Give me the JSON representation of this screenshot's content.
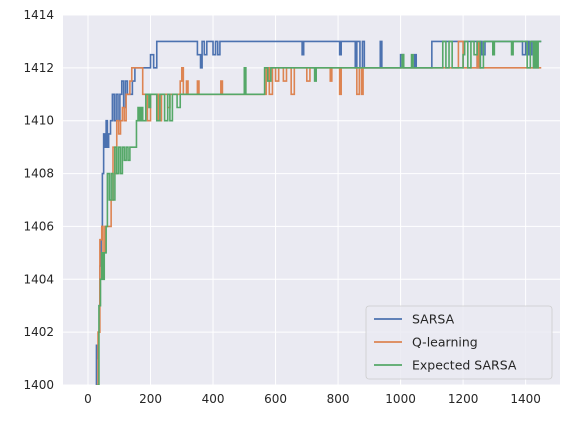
{
  "chart_data": {
    "type": "line",
    "title": "",
    "xlabel": "",
    "ylabel": "",
    "xlim": [
      -80,
      1510
    ],
    "ylim": [
      1400,
      1414
    ],
    "x_ticks": [
      0,
      200,
      400,
      600,
      800,
      1000,
      1200,
      1400
    ],
    "y_ticks": [
      1400,
      1402,
      1404,
      1406,
      1408,
      1410,
      1412,
      1414
    ],
    "grid": true,
    "legend_position": "lower-right",
    "series": [
      {
        "name": "SARSA",
        "color": "#4c72b0",
        "points": [
          [
            25,
            1400
          ],
          [
            27,
            1401.5
          ],
          [
            30,
            1401
          ],
          [
            33,
            1402
          ],
          [
            36,
            1403
          ],
          [
            38,
            1404.5
          ],
          [
            42,
            1405.5
          ],
          [
            46,
            1408
          ],
          [
            50,
            1409.5
          ],
          [
            55,
            1409
          ],
          [
            58,
            1410
          ],
          [
            62,
            1409
          ],
          [
            66,
            1409.5
          ],
          [
            72,
            1410
          ],
          [
            78,
            1411
          ],
          [
            84,
            1410
          ],
          [
            90,
            1411
          ],
          [
            96,
            1410
          ],
          [
            102,
            1411
          ],
          [
            108,
            1411.5
          ],
          [
            114,
            1410.5
          ],
          [
            120,
            1411.5
          ],
          [
            126,
            1411
          ],
          [
            134,
            1411
          ],
          [
            142,
            1411.5
          ],
          [
            150,
            1412
          ],
          [
            175,
            1412
          ],
          [
            190,
            1412
          ],
          [
            200,
            1412.5
          ],
          [
            210,
            1412
          ],
          [
            220,
            1413
          ],
          [
            345,
            1413
          ],
          [
            350,
            1412.5
          ],
          [
            360,
            1412
          ],
          [
            365,
            1413
          ],
          [
            372,
            1412.5
          ],
          [
            380,
            1413
          ],
          [
            395,
            1413
          ],
          [
            400,
            1412.5
          ],
          [
            408,
            1413
          ],
          [
            415,
            1412.5
          ],
          [
            422,
            1413
          ],
          [
            680,
            1413
          ],
          [
            685,
            1412.5
          ],
          [
            690,
            1413
          ],
          [
            800,
            1413
          ],
          [
            805,
            1412.5
          ],
          [
            810,
            1413
          ],
          [
            850,
            1413
          ],
          [
            855,
            1412
          ],
          [
            860,
            1413
          ],
          [
            870,
            1412
          ],
          [
            878,
            1413
          ],
          [
            884,
            1412
          ],
          [
            892,
            1412
          ],
          [
            930,
            1412
          ],
          [
            935,
            1413
          ],
          [
            940,
            1412
          ],
          [
            995,
            1412
          ],
          [
            1000,
            1412.5
          ],
          [
            1010,
            1412
          ],
          [
            1040,
            1412
          ],
          [
            1045,
            1412.5
          ],
          [
            1050,
            1412
          ],
          [
            1090,
            1412
          ],
          [
            1100,
            1413
          ],
          [
            1240,
            1413
          ],
          [
            1245,
            1412
          ],
          [
            1255,
            1413
          ],
          [
            1260,
            1412.5
          ],
          [
            1270,
            1413
          ],
          [
            1380,
            1413
          ],
          [
            1390,
            1412.5
          ],
          [
            1400,
            1413
          ],
          [
            1410,
            1412.5
          ],
          [
            1420,
            1413
          ],
          [
            1450,
            1413
          ]
        ]
      },
      {
        "name": "Q-learning",
        "color": "#dd8452",
        "points": [
          [
            28,
            1400
          ],
          [
            32,
            1402
          ],
          [
            38,
            1405.5
          ],
          [
            44,
            1406
          ],
          [
            48,
            1405
          ],
          [
            54,
            1406
          ],
          [
            68,
            1406
          ],
          [
            74,
            1407
          ],
          [
            80,
            1409
          ],
          [
            86,
            1408
          ],
          [
            92,
            1410
          ],
          [
            98,
            1409.5
          ],
          [
            104,
            1410
          ],
          [
            110,
            1410.5
          ],
          [
            116,
            1410
          ],
          [
            122,
            1411
          ],
          [
            128,
            1411
          ],
          [
            134,
            1411.5
          ],
          [
            140,
            1412
          ],
          [
            170,
            1412
          ],
          [
            175,
            1411
          ],
          [
            185,
            1411
          ],
          [
            190,
            1410
          ],
          [
            200,
            1411
          ],
          [
            220,
            1411
          ],
          [
            225,
            1410
          ],
          [
            235,
            1411
          ],
          [
            250,
            1411
          ],
          [
            255,
            1410.5
          ],
          [
            262,
            1411
          ],
          [
            290,
            1411
          ],
          [
            295,
            1411.5
          ],
          [
            300,
            1412
          ],
          [
            305,
            1411
          ],
          [
            315,
            1411.5
          ],
          [
            320,
            1411
          ],
          [
            345,
            1411
          ],
          [
            350,
            1411.5
          ],
          [
            355,
            1411
          ],
          [
            420,
            1411
          ],
          [
            425,
            1411.5
          ],
          [
            430,
            1411
          ],
          [
            560,
            1411
          ],
          [
            570,
            1412
          ],
          [
            580,
            1411
          ],
          [
            590,
            1412
          ],
          [
            600,
            1411.5
          ],
          [
            610,
            1412
          ],
          [
            625,
            1411.5
          ],
          [
            635,
            1412
          ],
          [
            650,
            1411
          ],
          [
            660,
            1412
          ],
          [
            690,
            1412
          ],
          [
            700,
            1411.5
          ],
          [
            710,
            1412
          ],
          [
            770,
            1412
          ],
          [
            775,
            1411.5
          ],
          [
            780,
            1412
          ],
          [
            800,
            1412
          ],
          [
            805,
            1411
          ],
          [
            810,
            1412
          ],
          [
            855,
            1412
          ],
          [
            860,
            1411
          ],
          [
            868,
            1412
          ],
          [
            875,
            1411
          ],
          [
            880,
            1412
          ],
          [
            1180,
            1412
          ],
          [
            1185,
            1413
          ],
          [
            1200,
            1412
          ],
          [
            1240,
            1412
          ],
          [
            1245,
            1413
          ],
          [
            1250,
            1412
          ],
          [
            1450,
            1412
          ]
        ]
      },
      {
        "name": "Expected SARSA",
        "color": "#55a868",
        "points": [
          [
            30,
            1400
          ],
          [
            35,
            1403
          ],
          [
            40,
            1404
          ],
          [
            44,
            1405
          ],
          [
            48,
            1404
          ],
          [
            52,
            1405
          ],
          [
            58,
            1406
          ],
          [
            62,
            1408
          ],
          [
            68,
            1407
          ],
          [
            74,
            1408
          ],
          [
            80,
            1407
          ],
          [
            86,
            1409
          ],
          [
            92,
            1408
          ],
          [
            98,
            1409
          ],
          [
            104,
            1408
          ],
          [
            110,
            1409
          ],
          [
            116,
            1408.5
          ],
          [
            122,
            1409
          ],
          [
            128,
            1408.5
          ],
          [
            134,
            1409
          ],
          [
            150,
            1409
          ],
          [
            155,
            1410
          ],
          [
            160,
            1410.5
          ],
          [
            165,
            1410
          ],
          [
            170,
            1410.5
          ],
          [
            175,
            1410
          ],
          [
            185,
            1411
          ],
          [
            195,
            1410.5
          ],
          [
            200,
            1411
          ],
          [
            215,
            1411
          ],
          [
            220,
            1410
          ],
          [
            230,
            1411
          ],
          [
            245,
            1410
          ],
          [
            255,
            1411
          ],
          [
            262,
            1410
          ],
          [
            270,
            1411
          ],
          [
            285,
            1410.5
          ],
          [
            295,
            1411
          ],
          [
            495,
            1411
          ],
          [
            500,
            1412
          ],
          [
            505,
            1411
          ],
          [
            560,
            1411
          ],
          [
            565,
            1412
          ],
          [
            575,
            1411.5
          ],
          [
            585,
            1412
          ],
          [
            720,
            1412
          ],
          [
            725,
            1411.5
          ],
          [
            730,
            1412
          ],
          [
            1000,
            1412
          ],
          [
            1005,
            1412.5
          ],
          [
            1010,
            1412
          ],
          [
            1030,
            1412
          ],
          [
            1035,
            1412.5
          ],
          [
            1040,
            1412
          ],
          [
            1130,
            1412
          ],
          [
            1135,
            1413
          ],
          [
            1145,
            1412
          ],
          [
            1155,
            1413
          ],
          [
            1165,
            1412
          ],
          [
            1195,
            1412
          ],
          [
            1200,
            1412.5
          ],
          [
            1205,
            1413
          ],
          [
            1215,
            1412
          ],
          [
            1225,
            1413
          ],
          [
            1235,
            1412.5
          ],
          [
            1245,
            1413
          ],
          [
            1255,
            1412
          ],
          [
            1265,
            1413
          ],
          [
            1290,
            1413
          ],
          [
            1295,
            1412.5
          ],
          [
            1300,
            1413
          ],
          [
            1350,
            1413
          ],
          [
            1355,
            1412.5
          ],
          [
            1360,
            1413
          ],
          [
            1400,
            1413
          ],
          [
            1405,
            1412
          ],
          [
            1415,
            1413
          ],
          [
            1425,
            1412
          ],
          [
            1430,
            1413
          ],
          [
            1435,
            1412
          ],
          [
            1440,
            1413
          ],
          [
            1450,
            1413
          ]
        ]
      }
    ]
  }
}
